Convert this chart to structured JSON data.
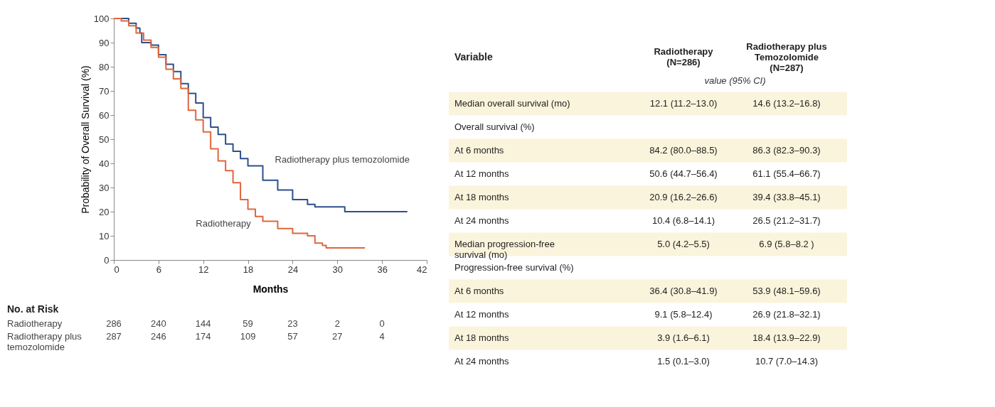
{
  "chart_data": [
    {
      "type": "step",
      "xlabel": "Months",
      "ylabel": "Probability of Overall Survival (%)",
      "xlim": [
        0,
        42
      ],
      "xticks": [
        0,
        6,
        12,
        18,
        24,
        30,
        36,
        42
      ],
      "ylim": [
        0,
        100
      ],
      "yticks": [
        0,
        10,
        20,
        30,
        40,
        50,
        60,
        70,
        80,
        90,
        100
      ],
      "grid": false,
      "line_style": "solid",
      "series": [
        {
          "name": "Radiotherapy plus temozolomide",
          "color": "#2c4f8c",
          "x": [
            0,
            1,
            2,
            3,
            3.5,
            3.75,
            5,
            6,
            7,
            8,
            9,
            10,
            11,
            12,
            13,
            14,
            15,
            16,
            17,
            18,
            20,
            22,
            24,
            26,
            27,
            30.2,
            31,
            39.4
          ],
          "values": [
            100,
            100,
            98,
            96,
            94,
            90,
            89,
            85,
            81,
            78,
            73,
            69,
            65,
            59,
            55,
            52,
            48,
            45,
            42,
            39,
            33,
            29,
            25,
            23,
            22,
            22,
            20,
            20
          ]
        },
        {
          "name": "Radiotherapy",
          "color": "#e0663c",
          "x": [
            0,
            1,
            2,
            3,
            4,
            5,
            6,
            7,
            8,
            9,
            10,
            11,
            12,
            13,
            14,
            15,
            16,
            17,
            18,
            19,
            20,
            22,
            24,
            26,
            27,
            28,
            28.5,
            33.7
          ],
          "values": [
            100,
            99,
            97,
            94,
            91,
            88,
            84,
            79,
            75,
            71,
            62,
            58,
            53,
            46,
            41,
            37,
            32,
            25,
            21,
            18,
            16,
            13,
            11,
            10,
            7,
            6,
            5,
            5
          ]
        }
      ],
      "annotations": [
        "No. at Risk",
        "Radiotherapy",
        "286",
        "240",
        "144",
        "59",
        "23",
        "2",
        "0",
        "Radiotherapy plus temozolomide",
        "287",
        "246",
        "174",
        "109",
        "57",
        "27",
        "4"
      ]
    },
    {
      "type": "other",
      "annotations": [
        "Variable",
        "Radiotherapy (N=286)",
        "Radiotherapy plus Temozolomide (N=287)",
        "value (95% CI)"
      ],
      "categories": [
        "Median overall survival (mo)",
        "Overall survival (%)",
        "At 6 months",
        "At 12 months",
        "At 18 months",
        "At 24 months",
        "Median progression-free survival (mo)",
        "Progression-free survival (%)",
        "At 6 months",
        "At 12 months",
        "At 18 months",
        "At 24 months"
      ],
      "cell_labels": [
        [
          "12.1 (11.2–13.0)",
          "14.6 (13.2–16.8)"
        ],
        [
          null,
          null
        ],
        [
          "84.2 (80.0–88.5)",
          "86.3 (82.3–90.3)"
        ],
        [
          "50.6 (44.7–56.4)",
          "61.1 (55.4–66.7)"
        ],
        [
          "20.9 (16.2–26.6)",
          "39.4 (33.8–45.1)"
        ],
        [
          "10.4 (6.8–14.1)",
          "26.5 (21.2–31.7)"
        ],
        [
          "5.0 (4.2–5.5)",
          "6.9 (5.8–8.2 )"
        ],
        [
          null,
          null
        ],
        [
          "36.4 (30.8–41.9)",
          "53.9 (48.1–59.6)"
        ],
        [
          "9.1 (5.8–12.4)",
          "26.9 (21.8–32.1)"
        ],
        [
          "3.9 (1.6–6.1)",
          "18.4 (13.9–22.9)"
        ],
        [
          "1.5 (0.1–3.0)",
          "10.7 (7.0–14.3)"
        ]
      ]
    }
  ]
}
